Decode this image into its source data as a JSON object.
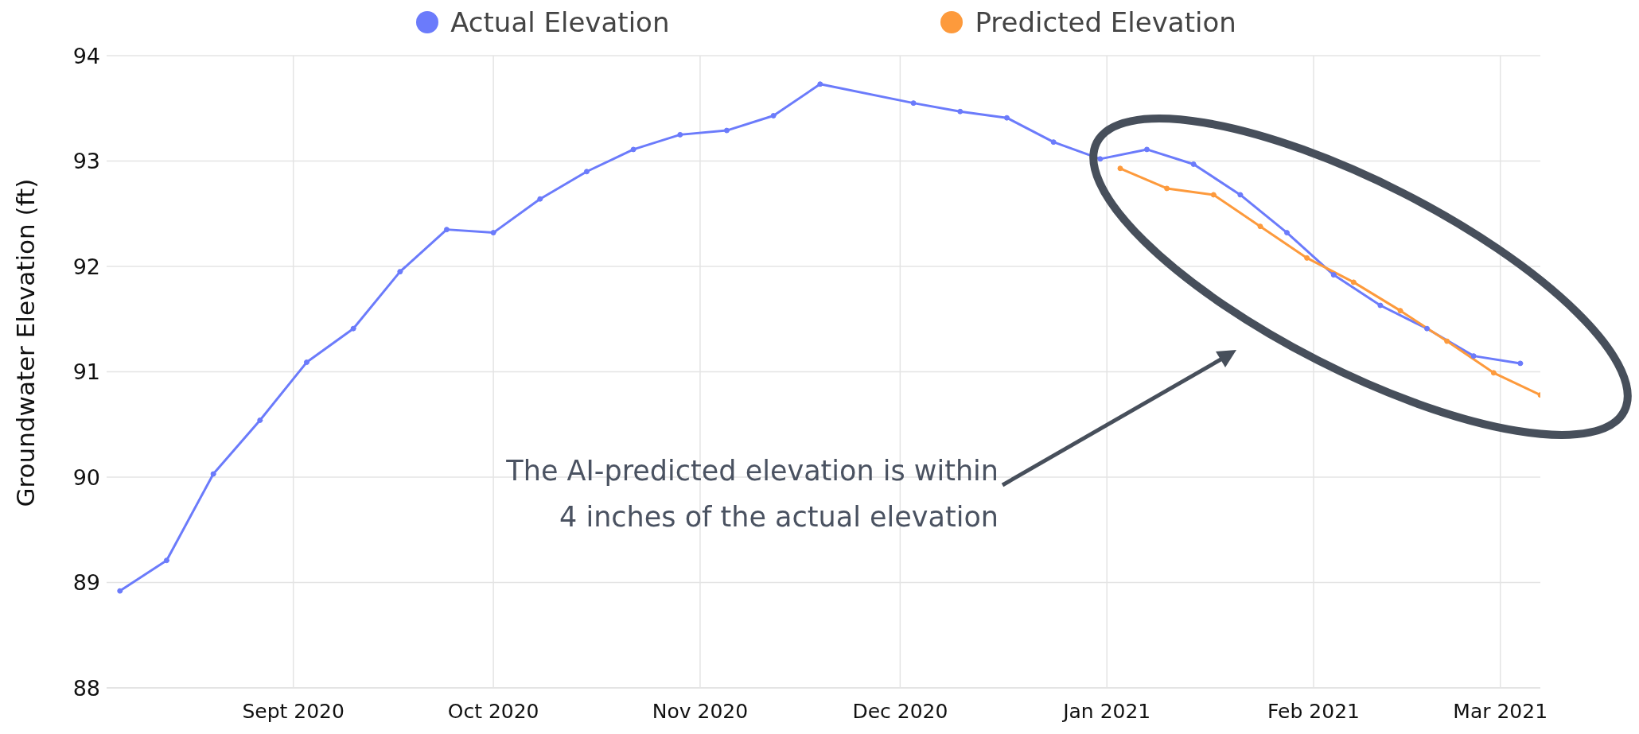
{
  "chart_data": {
    "type": "line",
    "ylabel": "Groundwater Elevation (ft)",
    "xlim": [
      "2020-08-04",
      "2021-03-07"
    ],
    "xticks": [
      {
        "value": "2020-09-01",
        "label": "Sept 2020"
      },
      {
        "value": "2020-10-01",
        "label": "Oct 2020"
      },
      {
        "value": "2020-11-01",
        "label": "Nov 2020"
      },
      {
        "value": "2020-12-01",
        "label": "Dec 2020"
      },
      {
        "value": "2021-01-01",
        "label": "Jan 2021"
      },
      {
        "value": "2021-02-01",
        "label": "Feb 2021"
      },
      {
        "value": "2021-03-01",
        "label": "Mar 2021"
      }
    ],
    "ylim": [
      88,
      94
    ],
    "yticks": [
      88,
      89,
      90,
      91,
      92,
      93,
      94
    ],
    "series": [
      {
        "name": "Actual Elevation",
        "color": "#6b7bfb",
        "x": [
          "2020-08-06",
          "2020-08-13",
          "2020-08-20",
          "2020-08-27",
          "2020-09-03",
          "2020-09-10",
          "2020-09-17",
          "2020-09-24",
          "2020-10-01",
          "2020-10-08",
          "2020-10-15",
          "2020-10-22",
          "2020-10-29",
          "2020-11-05",
          "2020-11-12",
          "2020-11-19",
          "2020-12-03",
          "2020-12-10",
          "2020-12-17",
          "2020-12-24",
          "2020-12-31",
          "2021-01-07",
          "2021-01-14",
          "2021-01-21",
          "2021-01-28",
          "2021-02-04",
          "2021-02-11",
          "2021-02-18",
          "2021-02-25",
          "2021-03-04"
        ],
        "values": [
          88.92,
          89.21,
          90.03,
          90.54,
          91.09,
          91.41,
          91.95,
          92.35,
          92.32,
          92.64,
          92.9,
          93.11,
          93.25,
          93.29,
          93.43,
          93.73,
          93.55,
          93.47,
          93.41,
          93.18,
          93.02,
          93.11,
          92.97,
          92.68,
          92.32,
          91.92,
          91.63,
          91.41,
          91.15,
          91.08
        ]
      },
      {
        "name": "Predicted Elevation",
        "color": "#fd9a3c",
        "x": [
          "2021-01-03",
          "2021-01-10",
          "2021-01-17",
          "2021-01-24",
          "2021-01-31",
          "2021-02-07",
          "2021-02-14",
          "2021-02-21",
          "2021-02-28",
          "2021-03-07"
        ],
        "values": [
          92.93,
          92.74,
          92.68,
          92.38,
          92.08,
          91.85,
          91.58,
          91.29,
          90.99,
          90.78
        ]
      }
    ],
    "annotations": [
      "The AI-predicted elevation is within\n4 inches of the actual elevation"
    ],
    "grid": true,
    "legend": "top",
    "marker": "circle",
    "line_style": "solid"
  }
}
